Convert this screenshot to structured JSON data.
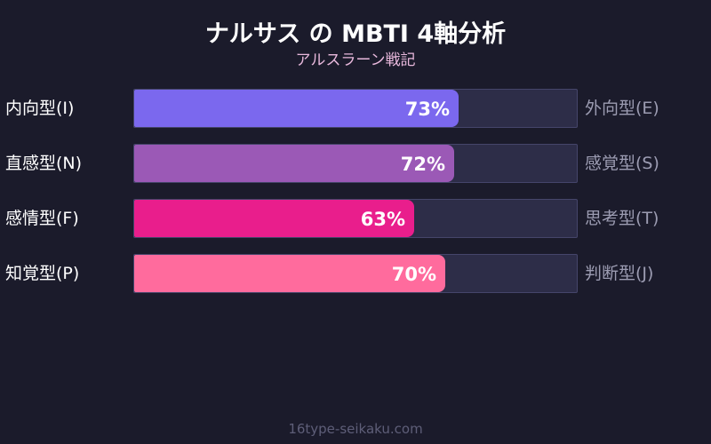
{
  "chart_data": {
    "type": "bar",
    "orientation": "horizontal",
    "title": "ナルサス の MBTI 4軸分析",
    "subtitle": "アルスラーン戦記",
    "xlim": [
      0,
      100
    ],
    "rows": [
      {
        "left_label": "内向型(I)",
        "right_label": "外向型(E)",
        "value": 73,
        "value_label": "73%",
        "color": "#7b68ee"
      },
      {
        "left_label": "直感型(N)",
        "right_label": "感覚型(S)",
        "value": 72,
        "value_label": "72%",
        "color": "#9b59b6"
      },
      {
        "left_label": "感情型(F)",
        "right_label": "思考型(T)",
        "value": 63,
        "value_label": "63%",
        "color": "#e91e8c"
      },
      {
        "left_label": "知覚型(P)",
        "right_label": "判断型(J)",
        "value": 70,
        "value_label": "70%",
        "color": "#ff6b9d"
      }
    ]
  },
  "footer": "16type-seikaku.com"
}
